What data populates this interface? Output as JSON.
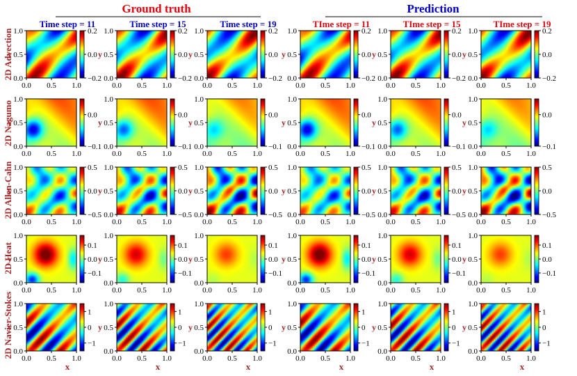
{
  "chart_data": {
    "type": "heatmap",
    "colormap": "jet",
    "group_titles": [
      "Ground truth",
      "Prediction"
    ],
    "group_colors": [
      "#e8000b",
      "#0000cc"
    ],
    "column_titles": [
      "Time step = 11",
      "Time step = 15",
      "Time step = 19",
      "TIme step = 11",
      "TIme step = 15",
      "TIme step = 19"
    ],
    "column_title_colors": [
      "#0000cc",
      "#0000cc",
      "#0000cc",
      "#e8000b",
      "#e8000b",
      "#e8000b"
    ],
    "row_labels": [
      "2D Advection",
      "2D Nagumo",
      "2D Allen-Cahn",
      "2D Heat",
      "2D Navier-Stokes"
    ],
    "label_color": "#a52a2a",
    "xlabel": "x",
    "ylabel": "y",
    "xlim": [
      0,
      1
    ],
    "ylim": [
      0,
      1
    ],
    "xticks": [
      "0.0",
      "0.5",
      "1.0"
    ],
    "yticks": [
      "0.0",
      "0.5",
      "1.0"
    ],
    "colorbar_ranges": [
      [
        -0.2,
        0.2
      ],
      [
        -0.1,
        0.05
      ],
      [
        -0.5,
        0.5
      ],
      [
        -0.17,
        0.17
      ],
      [
        -1.5,
        1.5
      ]
    ],
    "colorbar_ticks": [
      [
        "0.2",
        "0.0",
        "−0.2"
      ],
      [
        "0.0",
        "−0.1"
      ],
      [
        "0.5",
        "0.0",
        "−0.5"
      ],
      [
        "0.1",
        "0.0",
        "−0.1"
      ],
      [
        "1",
        "0",
        "−1"
      ]
    ],
    "colorbar_tick_values": [
      [
        0.2,
        0.0,
        -0.2
      ],
      [
        0.0,
        -0.1
      ],
      [
        0.5,
        0.0,
        -0.5
      ],
      [
        0.1,
        0.0,
        -0.1
      ],
      [
        1,
        0,
        -1
      ]
    ],
    "last_column_colorbar_ticks": [
      [
        "0.2",
        "0.0",
        "−0.2"
      ],
      [
        "0.0",
        "−0.1"
      ],
      [
        "0.5",
        "0.0",
        "−0.5"
      ],
      [
        "0.1",
        "0.0",
        "−0.1"
      ],
      [
        "1",
        "0",
        "−1"
      ]
    ],
    "time_steps": [
      11,
      15,
      19
    ]
  }
}
